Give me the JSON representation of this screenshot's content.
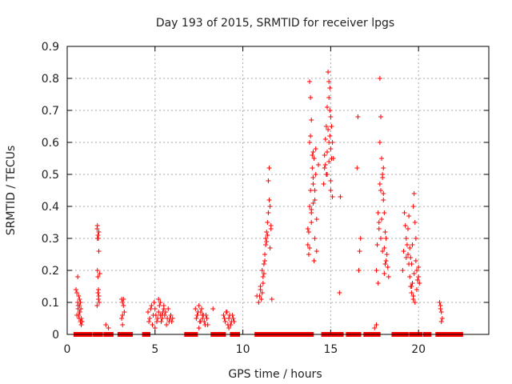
{
  "chart_data": {
    "type": "scatter",
    "title": "Day 193 of 2015, SRMTID for receiver lpgs",
    "xlabel": "GPS time / hours",
    "ylabel": "SRMTID / TECUs",
    "xlim": [
      0,
      24
    ],
    "ylim": [
      0,
      0.9
    ],
    "xticks": [
      0,
      5,
      10,
      15,
      20
    ],
    "xtick_labels": [
      "0",
      "5",
      "10",
      "15",
      "20"
    ],
    "yticks": [
      0,
      0.1,
      0.2,
      0.3,
      0.4,
      0.5,
      0.6,
      0.7,
      0.8,
      0.9
    ],
    "ytick_labels": [
      "0",
      "0.1",
      "0.2",
      "0.3",
      "0.4",
      "0.5",
      "0.6",
      "0.7",
      "0.8",
      "0.9"
    ],
    "grid": true,
    "marker": "+",
    "color": "#ff0000",
    "series": [
      {
        "name": "SRMTID",
        "x": [
          0.5,
          0.55,
          0.6,
          0.62,
          0.65,
          0.68,
          0.7,
          0.72,
          0.75,
          0.8,
          0.6,
          0.65,
          0.7,
          0.75,
          0.78,
          0.55,
          0.62,
          0.7,
          0.8,
          0.85,
          1.7,
          1.72,
          1.75,
          1.78,
          1.8,
          1.72,
          1.75,
          1.78,
          1.8,
          1.82,
          1.7,
          1.75,
          1.8,
          1.85,
          1.78,
          1.72,
          2.2,
          2.35,
          3.1,
          3.15,
          3.2,
          3.25,
          3.1,
          3.15,
          3.2,
          3.15,
          4.6,
          4.7,
          4.8,
          4.9,
          5.0,
          5.1,
          5.2,
          5.3,
          5.4,
          5.5,
          5.6,
          5.7,
          5.8,
          5.9,
          6.0,
          4.65,
          4.75,
          4.85,
          4.95,
          5.05,
          5.15,
          5.25,
          5.35,
          5.45,
          5.55,
          5.65,
          5.75,
          5.85,
          5.95,
          5.2,
          5.3,
          5.4,
          5.5,
          5.0,
          7.3,
          7.4,
          7.5,
          7.6,
          7.7,
          7.8,
          7.9,
          8.0,
          7.35,
          7.45,
          7.55,
          7.65,
          7.75,
          7.85,
          7.95,
          7.5,
          7.6,
          7.7,
          8.3,
          8.9,
          9.0,
          9.1,
          9.2,
          9.3,
          9.4,
          9.5,
          8.95,
          9.05,
          9.15,
          9.25,
          9.35,
          9.45,
          9.2,
          9.3,
          10.9,
          10.95,
          11.0,
          11.05,
          11.1,
          11.15,
          11.2,
          11.25,
          11.3,
          11.35,
          11.4,
          11.45,
          11.5,
          11.55,
          11.6,
          11.2,
          11.3,
          11.4,
          11.5,
          11.6,
          11.0,
          11.1,
          11.25,
          11.35,
          11.45,
          11.55,
          10.8,
          11.15,
          11.65,
          13.7,
          13.75,
          13.8,
          13.85,
          13.9,
          13.95,
          14.0,
          14.05,
          14.1,
          14.15,
          14.2,
          13.75,
          13.8,
          13.85,
          13.9,
          13.95,
          14.0,
          14.1,
          14.2,
          13.8,
          13.85,
          13.9,
          14.0,
          14.1,
          13.7,
          14.05,
          14.15,
          14.3,
          14.0,
          13.8,
          13.9,
          14.6,
          14.65,
          14.7,
          14.75,
          14.8,
          14.85,
          14.9,
          14.95,
          15.0,
          15.05,
          15.1,
          14.7,
          14.8,
          14.9,
          15.0,
          15.1,
          14.75,
          14.85,
          14.95,
          15.05,
          14.8,
          14.9,
          15.0,
          14.65,
          14.9,
          15.0,
          15.15,
          15.5,
          15.55,
          14.95,
          16.5,
          16.55,
          16.7,
          16.6,
          16.65,
          17.5,
          17.6,
          17.7,
          17.75,
          17.8,
          17.85,
          17.9,
          17.95,
          18.0,
          18.05,
          18.1,
          18.15,
          18.2,
          18.25,
          17.65,
          17.75,
          17.85,
          17.95,
          18.05,
          18.15,
          17.8,
          17.9,
          18.0,
          18.1,
          17.85,
          17.95,
          18.0,
          18.05,
          17.8,
          17.6,
          17.7,
          18.3,
          19.1,
          19.15,
          19.2,
          19.25,
          19.3,
          19.35,
          19.4,
          19.45,
          19.5,
          19.55,
          19.6,
          19.65,
          19.7,
          19.75,
          19.8,
          19.85,
          19.9,
          19.95,
          20.0,
          20.05,
          19.3,
          19.4,
          19.5,
          19.6,
          19.7,
          19.8,
          19.9,
          20.0,
          19.45,
          19.55,
          19.65,
          19.75,
          19.85,
          19.95,
          19.6,
          19.7,
          21.2,
          21.25,
          21.3,
          21.35,
          21.3,
          21.25
        ],
        "y": [
          0.14,
          0.13,
          0.1,
          0.08,
          0.06,
          0.05,
          0.09,
          0.07,
          0.04,
          0.03,
          0.18,
          0.12,
          0.11,
          0.1,
          0.08,
          0.06,
          0.09,
          0.07,
          0.05,
          0.04,
          0.33,
          0.34,
          0.31,
          0.3,
          0.26,
          0.2,
          0.18,
          0.14,
          0.12,
          0.1,
          0.09,
          0.13,
          0.32,
          0.19,
          0.11,
          0.3,
          0.03,
          0.02,
          0.11,
          0.1,
          0.09,
          0.07,
          0.05,
          0.03,
          0.11,
          0.06,
          0.07,
          0.05,
          0.09,
          0.06,
          0.08,
          0.04,
          0.07,
          0.06,
          0.05,
          0.08,
          0.07,
          0.05,
          0.04,
          0.06,
          0.05,
          0.04,
          0.08,
          0.03,
          0.1,
          0.06,
          0.05,
          0.09,
          0.04,
          0.07,
          0.06,
          0.03,
          0.08,
          0.05,
          0.04,
          0.11,
          0.1,
          0.06,
          0.09,
          0.02,
          0.08,
          0.06,
          0.09,
          0.07,
          0.05,
          0.04,
          0.06,
          0.03,
          0.05,
          0.07,
          0.04,
          0.08,
          0.06,
          0.03,
          0.05,
          0.02,
          0.04,
          0.06,
          0.08,
          0.06,
          0.04,
          0.07,
          0.05,
          0.03,
          0.06,
          0.04,
          0.05,
          0.07,
          0.03,
          0.06,
          0.04,
          0.05,
          0.02,
          0.03,
          0.1,
          0.12,
          0.14,
          0.11,
          0.13,
          0.16,
          0.22,
          0.25,
          0.3,
          0.32,
          0.35,
          0.38,
          0.42,
          0.4,
          0.34,
          0.19,
          0.28,
          0.31,
          0.52,
          0.33,
          0.15,
          0.2,
          0.23,
          0.29,
          0.48,
          0.27,
          0.12,
          0.18,
          0.11,
          0.28,
          0.25,
          0.4,
          0.45,
          0.38,
          0.52,
          0.49,
          0.55,
          0.42,
          0.58,
          0.36,
          0.32,
          0.6,
          0.62,
          0.67,
          0.56,
          0.47,
          0.3,
          0.26,
          0.79,
          0.74,
          0.35,
          0.41,
          0.45,
          0.33,
          0.23,
          0.5,
          0.53,
          0.57,
          0.27,
          0.39,
          0.47,
          0.56,
          0.61,
          0.65,
          0.71,
          0.82,
          0.79,
          0.77,
          0.68,
          0.55,
          0.6,
          0.53,
          0.5,
          0.74,
          0.58,
          0.43,
          0.5,
          0.64,
          0.7,
          0.65,
          0.57,
          0.54,
          0.48,
          0.52,
          0.6,
          0.45,
          0.55,
          0.13,
          0.43,
          0.62,
          0.52,
          0.68,
          0.3,
          0.2,
          0.26,
          0.02,
          0.03,
          0.38,
          0.35,
          0.8,
          0.68,
          0.55,
          0.5,
          0.42,
          0.38,
          0.32,
          0.3,
          0.25,
          0.21,
          0.28,
          0.33,
          0.45,
          0.49,
          0.27,
          0.23,
          0.47,
          0.36,
          0.44,
          0.22,
          0.3,
          0.26,
          0.52,
          0.19,
          0.6,
          0.2,
          0.16,
          0.18,
          0.2,
          0.26,
          0.38,
          0.34,
          0.3,
          0.28,
          0.25,
          0.22,
          0.18,
          0.15,
          0.22,
          0.16,
          0.4,
          0.44,
          0.35,
          0.3,
          0.2,
          0.17,
          0.18,
          0.16,
          0.24,
          0.33,
          0.27,
          0.13,
          0.12,
          0.1,
          0.14,
          0.21,
          0.37,
          0.24,
          0.28,
          0.19,
          0.23,
          0.17,
          0.15,
          0.11,
          0.1,
          0.08,
          0.07,
          0.05,
          0.04,
          0.09
        ],
        "zero_segments": [
          [
            0.5,
            0.9
          ],
          [
            1.1,
            1.3
          ],
          [
            1.6,
            1.9
          ],
          [
            2.2,
            2.5
          ],
          [
            3.0,
            3.3
          ],
          [
            3.4,
            3.6
          ],
          [
            4.4,
            4.6
          ],
          [
            6.8,
            7.3
          ],
          [
            8.3,
            8.9
          ],
          [
            9.4,
            9.7
          ],
          [
            10.8,
            13.3
          ],
          [
            13.4,
            13.9
          ],
          [
            14.6,
            15.6
          ],
          [
            16.0,
            16.6
          ],
          [
            17.0,
            17.7
          ],
          [
            18.6,
            19.3
          ],
          [
            19.6,
            20.1
          ],
          [
            20.4,
            20.6
          ],
          [
            21.1,
            21.4
          ],
          [
            21.6,
            22.0
          ],
          [
            22.2,
            22.4
          ]
        ]
      }
    ]
  }
}
